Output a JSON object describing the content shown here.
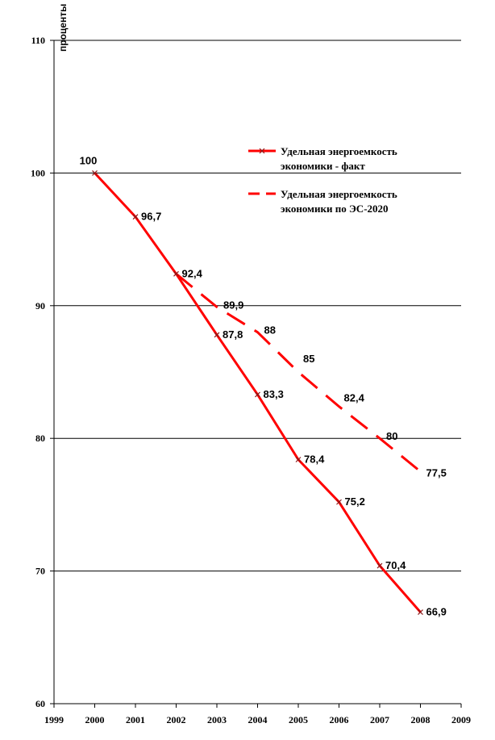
{
  "chart_data": {
    "type": "line",
    "ylabel": "проценты",
    "xlim": [
      1999,
      2009
    ],
    "ylim": [
      60,
      110
    ],
    "xticks": [
      "1999",
      "2000",
      "2001",
      "2002",
      "2003",
      "2004",
      "2005",
      "2006",
      "2007",
      "2008",
      "2009"
    ],
    "yticks": [
      "60",
      "70",
      "80",
      "90",
      "100",
      "110"
    ],
    "grid": "horizontal",
    "legend_position": "top-right",
    "series": [
      {
        "name": "Удельная энергоемкость экономики - факт",
        "legend_lines": [
          "Удельная энергоемкость",
          "экономики - факт"
        ],
        "style": "solid",
        "color": "#ff0000",
        "x": [
          2000,
          2001,
          2002,
          2003,
          2004,
          2005,
          2006,
          2007,
          2008
        ],
        "values": [
          100,
          96.7,
          92.4,
          87.8,
          83.3,
          78.4,
          75.2,
          70.4,
          66.9
        ],
        "labels": [
          "100",
          "96,7",
          "92,4",
          "87,8",
          "83,3",
          "78,4",
          "75,2",
          "70,4",
          "66,9"
        ]
      },
      {
        "name": "Удельная энергоемкость экономики по ЭС-2020",
        "legend_lines": [
          "Удельная энергоемкость",
          "экономики по ЭС-2020"
        ],
        "style": "dashed",
        "color": "#ff0000",
        "x": [
          2002,
          2003,
          2004,
          2005,
          2006,
          2007,
          2008
        ],
        "values": [
          92.4,
          89.9,
          88,
          85,
          82.4,
          80,
          77.5
        ],
        "labels": [
          "89,9",
          "88",
          "85",
          "82,4",
          "80",
          "77,5"
        ]
      }
    ]
  }
}
